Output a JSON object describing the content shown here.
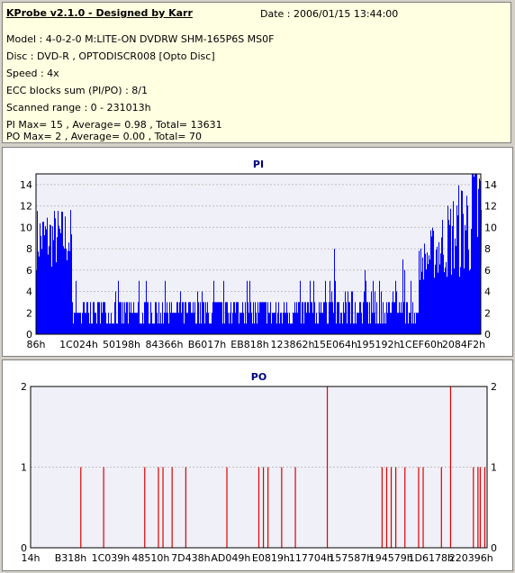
{
  "header": {
    "title": "KProbe v2.1.0 - Designed by Karr",
    "date": "Date : 2006/01/15 13:44:00",
    "lines": [
      "Model : 4-0-2-0 M:LITE-ON DVDRW SHM-165P6S MS0F",
      "Disc : DVD-R , OPTODISCR008 [Opto Disc]",
      "Speed : 4x",
      "ECC blocks sum (PI/PO) : 8/1",
      "Scanned range : 0 - 231013h",
      "PI Max= 15 , Average= 0.98 , Total= 13631",
      "PO Max= 2 , Average= 0.00 , Total= 70"
    ]
  },
  "colors": {
    "pi": "#0000ff",
    "po": "#e00000",
    "plot_bg": "#f0f0f8",
    "grid": "#c0c0c0"
  },
  "chart_data": [
    {
      "type": "bar",
      "title": "PI",
      "ylim": [
        0,
        15
      ],
      "yticks": [
        0,
        2,
        4,
        6,
        8,
        10,
        12,
        14
      ],
      "x_tick_labels": [
        "86h",
        "1C024h",
        "50198h",
        "84366h",
        "B6017h",
        "EB818h",
        "123862h",
        "15E064h",
        "195192h",
        "1CEF60h",
        "2084F2h"
      ],
      "series_profile": {
        "start_range": [
          6,
          12
        ],
        "bulk_range": [
          1,
          4
        ],
        "end_range": [
          5,
          15
        ],
        "peak": 15
      }
    },
    {
      "type": "bar",
      "title": "PO",
      "ylim": [
        0,
        2
      ],
      "yticks": [
        0,
        1,
        2
      ],
      "x_tick_labels": [
        "14h",
        "B318h",
        "1C039h",
        "48510h",
        "7D438h",
        "AD049h",
        "E0819h",
        "117704h",
        "157587h",
        "194579h",
        "1D6178h",
        "220396h"
      ],
      "spikes": [
        {
          "x": 0.11,
          "v": 1
        },
        {
          "x": 0.16,
          "v": 1
        },
        {
          "x": 0.25,
          "v": 1
        },
        {
          "x": 0.28,
          "v": 1
        },
        {
          "x": 0.29,
          "v": 1
        },
        {
          "x": 0.31,
          "v": 1
        },
        {
          "x": 0.34,
          "v": 1
        },
        {
          "x": 0.43,
          "v": 1
        },
        {
          "x": 0.5,
          "v": 1
        },
        {
          "x": 0.51,
          "v": 1
        },
        {
          "x": 0.52,
          "v": 1
        },
        {
          "x": 0.55,
          "v": 1
        },
        {
          "x": 0.58,
          "v": 1
        },
        {
          "x": 0.65,
          "v": 2
        },
        {
          "x": 0.77,
          "v": 1
        },
        {
          "x": 0.78,
          "v": 1
        },
        {
          "x": 0.79,
          "v": 1
        },
        {
          "x": 0.8,
          "v": 1
        },
        {
          "x": 0.82,
          "v": 1
        },
        {
          "x": 0.85,
          "v": 1
        },
        {
          "x": 0.86,
          "v": 1
        },
        {
          "x": 0.9,
          "v": 1
        },
        {
          "x": 0.92,
          "v": 2
        },
        {
          "x": 0.97,
          "v": 1
        },
        {
          "x": 0.98,
          "v": 1
        },
        {
          "x": 0.985,
          "v": 1
        },
        {
          "x": 0.995,
          "v": 1
        }
      ]
    }
  ]
}
